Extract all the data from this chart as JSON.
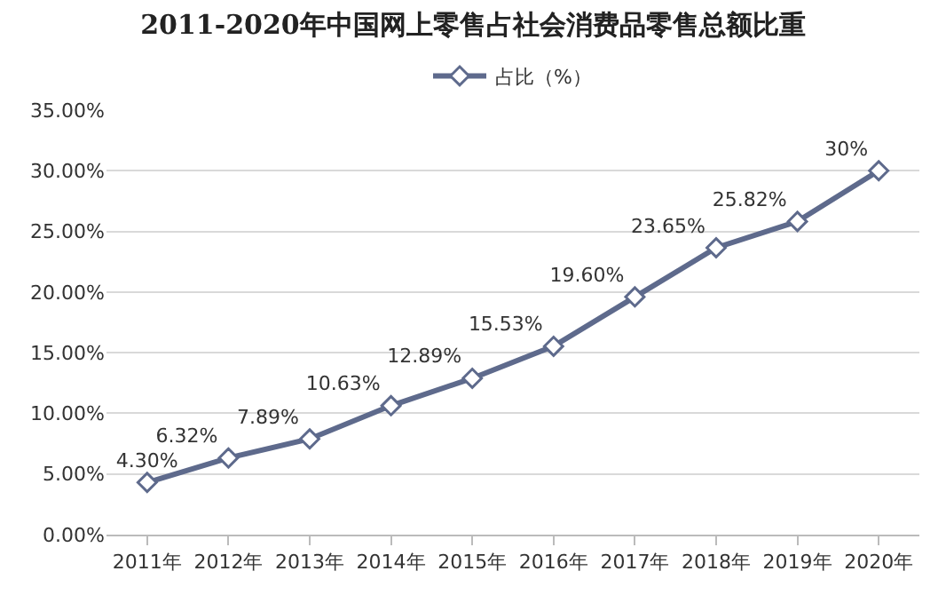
{
  "chart_data": {
    "type": "line",
    "title": "2011-2020年中国网上零售占社会消费品零售总额比重",
    "categories": [
      "2011年",
      "2012年",
      "2013年",
      "2014年",
      "2015年",
      "2016年",
      "2017年",
      "2018年",
      "2019年",
      "2020年"
    ],
    "series": [
      {
        "name": "占比（%）",
        "color": "#5e6a8c",
        "values": [
          4.3,
          6.32,
          7.89,
          10.63,
          12.89,
          15.53,
          19.6,
          23.65,
          25.82,
          30
        ],
        "value_labels": [
          "4.30%",
          "6.32%",
          "7.89%",
          "10.63%",
          "12.89%",
          "15.53%",
          "19.60%",
          "23.65%",
          "25.82%",
          "30%"
        ]
      }
    ],
    "ylim": [
      0,
      35
    ],
    "yticks": [
      {
        "value": 0,
        "label": "0.00%"
      },
      {
        "value": 5,
        "label": "5.00%"
      },
      {
        "value": 10,
        "label": "10.00%"
      },
      {
        "value": 15,
        "label": "15.00%"
      },
      {
        "value": 20,
        "label": "20.00%"
      },
      {
        "value": 25,
        "label": "25.00%"
      },
      {
        "value": 30,
        "label": "30.00%"
      },
      {
        "value": 35,
        "label": "35.00%"
      }
    ],
    "grid": "y",
    "legend": "top",
    "marker": "diamond",
    "line_style": "solid"
  }
}
